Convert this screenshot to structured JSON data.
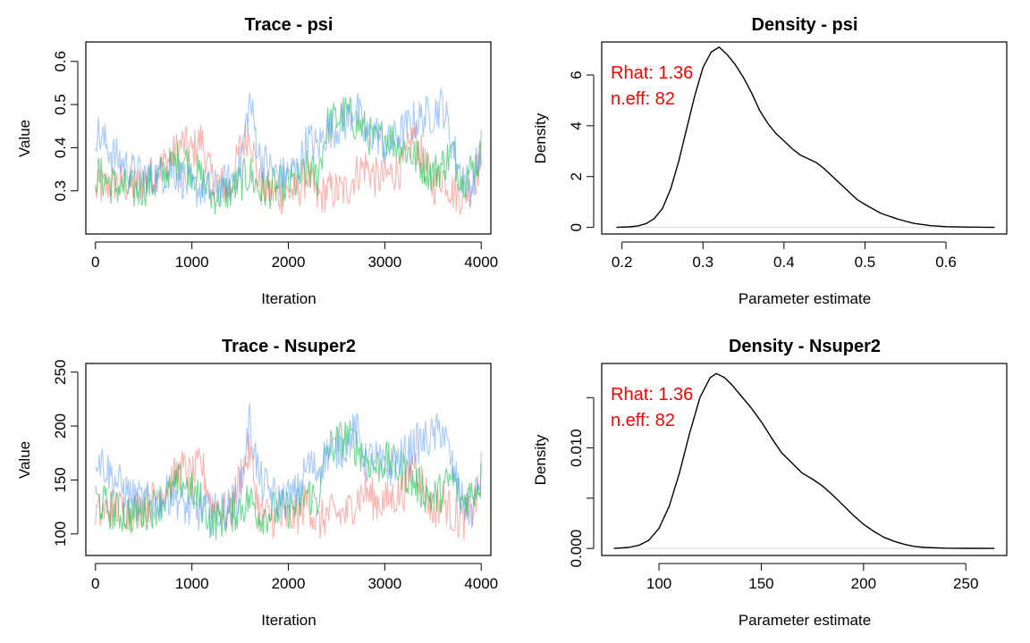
{
  "colors": {
    "chain1": "#f8766d",
    "chain2": "#00ba38",
    "chain3": "#619cff",
    "density_line": "#000000",
    "baseline": "#d9d9d9",
    "annotation": "#ff0000"
  },
  "chart_data": [
    {
      "id": "trace-psi",
      "type": "line",
      "title": "Trace - psi",
      "xlabel": "Iteration",
      "ylabel": "Value",
      "xlim": [
        -100,
        4100
      ],
      "ylim": [
        0.2,
        0.645
      ],
      "xticks": [
        0,
        1000,
        2000,
        3000,
        4000
      ],
      "yticks": [
        0.3,
        0.4,
        0.5,
        0.6
      ],
      "ytick_labels": [
        "0.3",
        "0.4",
        "0.5",
        "0.6"
      ],
      "grid": false,
      "series": [
        {
          "color_key": "chain1",
          "x": [
            0,
            200,
            400,
            600,
            800,
            900,
            1000,
            1100,
            1200,
            1400,
            1500,
            1600,
            1700,
            1900,
            2100,
            2200,
            2300,
            2400,
            2600,
            2700,
            2800,
            2900,
            3000,
            3200,
            3300,
            3500,
            3600,
            3700,
            3800,
            3900,
            4000
          ],
          "y": [
            0.3,
            0.32,
            0.31,
            0.34,
            0.38,
            0.41,
            0.39,
            0.42,
            0.33,
            0.3,
            0.4,
            0.44,
            0.31,
            0.29,
            0.3,
            0.34,
            0.28,
            0.3,
            0.3,
            0.34,
            0.36,
            0.33,
            0.33,
            0.36,
            0.43,
            0.31,
            0.34,
            0.3,
            0.29,
            0.31,
            0.37
          ]
        },
        {
          "color_key": "chain2",
          "x": [
            0,
            200,
            400,
            600,
            800,
            900,
            1000,
            1100,
            1200,
            1400,
            1500,
            1600,
            1700,
            1900,
            2100,
            2200,
            2300,
            2400,
            2600,
            2700,
            2800,
            2900,
            3000,
            3200,
            3300,
            3500,
            3600,
            3700,
            3800,
            3900,
            4000
          ],
          "y": [
            0.34,
            0.31,
            0.3,
            0.32,
            0.36,
            0.38,
            0.35,
            0.33,
            0.29,
            0.3,
            0.32,
            0.34,
            0.3,
            0.31,
            0.32,
            0.35,
            0.33,
            0.45,
            0.48,
            0.46,
            0.44,
            0.41,
            0.43,
            0.4,
            0.38,
            0.34,
            0.36,
            0.39,
            0.33,
            0.35,
            0.38
          ]
        },
        {
          "color_key": "chain3",
          "x": [
            0,
            200,
            400,
            600,
            800,
            900,
            1000,
            1100,
            1200,
            1400,
            1500,
            1600,
            1700,
            1900,
            2100,
            2200,
            2300,
            2400,
            2600,
            2700,
            2800,
            2900,
            3000,
            3200,
            3300,
            3500,
            3600,
            3700,
            3800,
            3900,
            4000
          ],
          "y": [
            0.44,
            0.38,
            0.34,
            0.33,
            0.35,
            0.33,
            0.3,
            0.31,
            0.3,
            0.32,
            0.36,
            0.51,
            0.38,
            0.33,
            0.35,
            0.42,
            0.4,
            0.44,
            0.46,
            0.5,
            0.42,
            0.44,
            0.4,
            0.44,
            0.46,
            0.48,
            0.5,
            0.41,
            0.33,
            0.31,
            0.4
          ]
        }
      ]
    },
    {
      "id": "density-psi",
      "type": "line",
      "title": "Density - psi",
      "xlabel": "Parameter estimate",
      "ylabel": "Density",
      "xlim": [
        0.175,
        0.675
      ],
      "ylim": [
        -0.26,
        7.3
      ],
      "xticks": [
        0.2,
        0.3,
        0.4,
        0.5,
        0.6
      ],
      "xtick_labels": [
        "0.2",
        "0.3",
        "0.4",
        "0.5",
        "0.6"
      ],
      "yticks": [
        0,
        2,
        4,
        6
      ],
      "ytick_labels": [
        "0",
        "2",
        "4",
        "6"
      ],
      "grid": false,
      "annotations": [
        "Rhat: 1.36",
        "n.eff: 82"
      ],
      "series": [
        {
          "x": [
            0.193,
            0.21,
            0.22,
            0.23,
            0.24,
            0.25,
            0.26,
            0.27,
            0.28,
            0.29,
            0.3,
            0.31,
            0.32,
            0.33,
            0.34,
            0.35,
            0.36,
            0.37,
            0.38,
            0.39,
            0.4,
            0.41,
            0.42,
            0.43,
            0.44,
            0.45,
            0.46,
            0.47,
            0.48,
            0.49,
            0.5,
            0.52,
            0.54,
            0.56,
            0.58,
            0.6,
            0.63,
            0.66
          ],
          "y": [
            0.0,
            0.02,
            0.06,
            0.15,
            0.35,
            0.75,
            1.5,
            2.6,
            3.9,
            5.2,
            6.3,
            6.9,
            7.1,
            6.8,
            6.4,
            5.9,
            5.3,
            4.6,
            4.1,
            3.7,
            3.4,
            3.1,
            2.85,
            2.7,
            2.55,
            2.3,
            2.0,
            1.7,
            1.4,
            1.1,
            0.9,
            0.55,
            0.33,
            0.16,
            0.07,
            0.03,
            0.01,
            0.0
          ]
        }
      ]
    },
    {
      "id": "trace-nsuper2",
      "type": "line",
      "title": "Trace - Nsuper2",
      "xlabel": "Iteration",
      "ylabel": "Value",
      "xlim": [
        -100,
        4100
      ],
      "ylim": [
        80,
        258
      ],
      "xticks": [
        0,
        1000,
        2000,
        3000,
        4000
      ],
      "yticks": [
        100,
        150,
        200,
        250
      ],
      "ytick_labels": [
        "100",
        "150",
        "200",
        "250"
      ],
      "grid": false,
      "series": [
        {
          "color_key": "chain1",
          "x": [
            0,
            200,
            400,
            600,
            800,
            900,
            1000,
            1100,
            1200,
            1400,
            1500,
            1600,
            1700,
            1900,
            2100,
            2200,
            2300,
            2400,
            2600,
            2700,
            2800,
            2900,
            3000,
            3200,
            3300,
            3500,
            3600,
            3700,
            3800,
            3900,
            4000
          ],
          "y": [
            118,
            125,
            121,
            132,
            150,
            160,
            152,
            165,
            128,
            118,
            155,
            175,
            120,
            112,
            118,
            132,
            108,
            118,
            118,
            132,
            140,
            130,
            130,
            140,
            170,
            120,
            132,
            118,
            112,
            120,
            145
          ]
        },
        {
          "color_key": "chain2",
          "x": [
            0,
            200,
            400,
            600,
            800,
            900,
            1000,
            1100,
            1200,
            1400,
            1500,
            1600,
            1700,
            1900,
            2100,
            2200,
            2300,
            2400,
            2600,
            2700,
            2800,
            2900,
            3000,
            3200,
            3300,
            3500,
            3600,
            3700,
            3800,
            3900,
            4000
          ],
          "y": [
            132,
            120,
            118,
            125,
            140,
            150,
            138,
            130,
            112,
            118,
            125,
            132,
            118,
            122,
            125,
            138,
            130,
            178,
            190,
            182,
            172,
            162,
            168,
            158,
            148,
            132,
            140,
            152,
            130,
            138,
            150
          ]
        },
        {
          "color_key": "chain3",
          "x": [
            0,
            200,
            400,
            600,
            800,
            900,
            1000,
            1100,
            1200,
            1400,
            1500,
            1600,
            1700,
            1900,
            2100,
            2200,
            2300,
            2400,
            2600,
            2700,
            2800,
            2900,
            3000,
            3200,
            3300,
            3500,
            3600,
            3700,
            3800,
            3900,
            4000
          ],
          "y": [
            175,
            150,
            132,
            128,
            138,
            128,
            118,
            122,
            118,
            125,
            140,
            205,
            150,
            130,
            138,
            165,
            158,
            175,
            182,
            198,
            165,
            172,
            158,
            172,
            182,
            190,
            198,
            162,
            130,
            120,
            158
          ]
        }
      ]
    },
    {
      "id": "density-nsuper2",
      "type": "line",
      "title": "Density - Nsuper2",
      "xlabel": "Parameter estimate",
      "ylabel": "Density",
      "xlim": [
        72,
        270
      ],
      "ylim": [
        -0.0007,
        0.0184
      ],
      "xticks": [
        100,
        150,
        200,
        250
      ],
      "xtick_labels": [
        "100",
        "150",
        "200",
        "250"
      ],
      "yticks": [
        0.0,
        0.005,
        0.01,
        0.015
      ],
      "ytick_labels": [
        "0.000",
        "",
        "0.010",
        ""
      ],
      "grid": false,
      "annotations": [
        "Rhat: 1.36",
        "n.eff: 82"
      ],
      "series": [
        {
          "x": [
            78,
            85,
            90,
            95,
            100,
            105,
            110,
            115,
            120,
            125,
            128,
            132,
            136,
            140,
            145,
            150,
            155,
            160,
            165,
            170,
            175,
            180,
            185,
            190,
            195,
            200,
            205,
            210,
            215,
            220,
            225,
            230,
            240,
            250,
            264
          ],
          "y": [
            0.0,
            0.0001,
            0.0003,
            0.0008,
            0.002,
            0.0042,
            0.0075,
            0.0115,
            0.015,
            0.017,
            0.0174,
            0.017,
            0.0162,
            0.0152,
            0.014,
            0.0126,
            0.011,
            0.0095,
            0.0085,
            0.0075,
            0.0069,
            0.0062,
            0.0053,
            0.0043,
            0.0033,
            0.0024,
            0.0017,
            0.0011,
            0.0007,
            0.0004,
            0.0002,
            0.0001,
            3e-05,
            1e-05,
            0.0
          ]
        }
      ]
    }
  ]
}
